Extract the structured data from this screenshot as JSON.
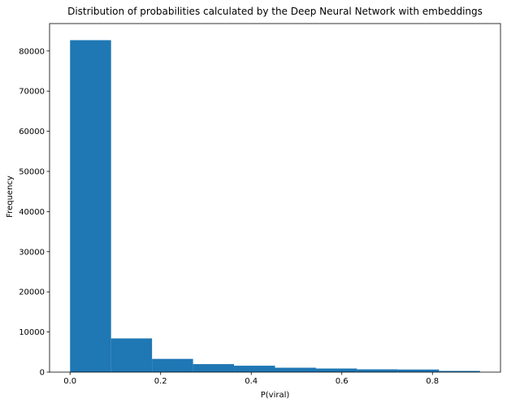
{
  "chart_data": {
    "type": "bar",
    "title": "Distribution of probabilities calculated by the Deep Neural Network with embeddings",
    "xlabel": "P(viral)",
    "ylabel": "Frequency",
    "bin_edges": [
      0.0,
      0.0905,
      0.181,
      0.2715,
      0.362,
      0.4525,
      0.543,
      0.6335,
      0.724,
      0.8145,
      0.905
    ],
    "values": [
      82700,
      8400,
      3300,
      2000,
      1600,
      1100,
      900,
      700,
      650,
      300
    ],
    "xlim": [
      -0.04525,
      0.95025
    ],
    "ylim": [
      0,
      86835
    ],
    "xticks": [
      0.0,
      0.2,
      0.4,
      0.6,
      0.8
    ],
    "xtick_labels": [
      "0.0",
      "0.2",
      "0.4",
      "0.6",
      "0.8"
    ],
    "yticks": [
      0,
      10000,
      20000,
      30000,
      40000,
      50000,
      60000,
      70000,
      80000
    ],
    "ytick_labels": [
      "0",
      "10000",
      "20000",
      "30000",
      "40000",
      "50000",
      "60000",
      "70000",
      "80000"
    ],
    "bar_color": "#1f77b4",
    "grid": false,
    "legend": "none"
  }
}
